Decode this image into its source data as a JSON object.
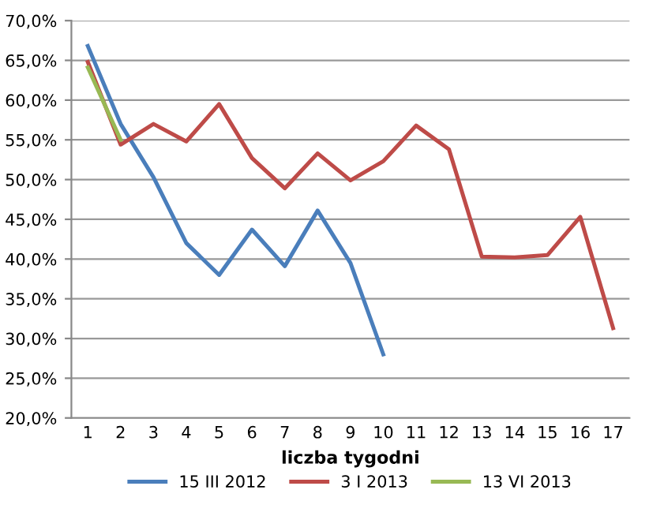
{
  "chart_data": {
    "type": "line",
    "xlabel": "liczba tygodni",
    "categories": [
      "1",
      "2",
      "3",
      "4",
      "5",
      "6",
      "7",
      "8",
      "9",
      "10",
      "11",
      "12",
      "13",
      "14",
      "15",
      "16",
      "17"
    ],
    "series": [
      {
        "name": "15 III 2012",
        "color": "#4a7ebb",
        "values": [
          66.8,
          57.0,
          50.3,
          42.0,
          38.0,
          43.7,
          39.1,
          46.1,
          39.5,
          28.0,
          null,
          null,
          null,
          null,
          null,
          null,
          null
        ]
      },
      {
        "name": "3 I 2013",
        "color": "#be4b48",
        "values": [
          64.8,
          54.4,
          57.0,
          54.8,
          59.5,
          52.7,
          48.9,
          53.3,
          49.9,
          52.3,
          56.8,
          53.8,
          40.3,
          40.2,
          40.5,
          45.3,
          31.3
        ]
      },
      {
        "name": "13 VI 2013",
        "color": "#98b954",
        "values": [
          64.1,
          55.0,
          null,
          null,
          null,
          null,
          null,
          null,
          null,
          null,
          null,
          null,
          null,
          null,
          null,
          null,
          null
        ]
      }
    ],
    "ylim": [
      20,
      70
    ],
    "yticks": [
      {
        "value": 20,
        "label": "20,0%"
      },
      {
        "value": 25,
        "label": "25,0%"
      },
      {
        "value": 30,
        "label": "30,0%"
      },
      {
        "value": 35,
        "label": "35,0%"
      },
      {
        "value": 40,
        "label": "40,0%"
      },
      {
        "value": 45,
        "label": "45,0%"
      },
      {
        "value": 50,
        "label": "50,0%"
      },
      {
        "value": 55,
        "label": "55,0%"
      },
      {
        "value": 60,
        "label": "60,0%"
      },
      {
        "value": 65,
        "label": "65,0%"
      },
      {
        "value": 70,
        "label": "70,0%"
      }
    ],
    "grid": "y",
    "legend": "bottom",
    "marker": "none",
    "line_style": "solid"
  }
}
